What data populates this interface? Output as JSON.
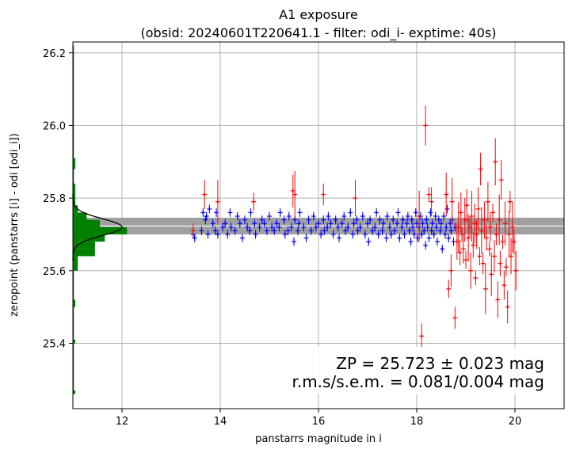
{
  "chart_data": {
    "type": "scatter",
    "title": "A1 exposure",
    "subtitle": "(obsid: 20240601T220641.1 - filter: odi_i- exptime: 40s)",
    "xlabel": "panstarrs magnitude in i",
    "ylabel": "zeropoint (panstarrs [i] - odi [odi_i])",
    "xlim": [
      11.0,
      21.0
    ],
    "ylim": [
      25.22,
      26.23
    ],
    "xticks": [
      12,
      14,
      16,
      18,
      20
    ],
    "yticks": [
      25.4,
      25.6,
      25.8,
      26.0,
      26.2
    ],
    "xtick_labels": [
      "12",
      "14",
      "16",
      "18",
      "20"
    ],
    "ytick_labels": [
      "25.4",
      "25.6",
      "25.8",
      "26.0",
      "26.2"
    ],
    "grid": true,
    "zeropoint_band": {
      "center": 25.723,
      "lower": 25.7,
      "upper": 25.746,
      "color": "#a0a0a0"
    },
    "zeropoint_line": {
      "y": 25.723,
      "color": "#ffffff"
    },
    "histogram": {
      "color": "#008000",
      "bins": [
        {
          "y0": 25.26,
          "y1": 25.27,
          "count": 0.05
        },
        {
          "y0": 25.4,
          "y1": 25.41,
          "count": 0.05
        },
        {
          "y0": 25.5,
          "y1": 25.52,
          "count": 0.05
        },
        {
          "y0": 25.6,
          "y1": 25.64,
          "count": 0.1
        },
        {
          "y0": 25.64,
          "y1": 25.66,
          "count": 0.45
        },
        {
          "y0": 25.66,
          "y1": 25.68,
          "count": 0.45
        },
        {
          "y0": 25.68,
          "y1": 25.7,
          "count": 0.65
        },
        {
          "y0": 25.7,
          "y1": 25.72,
          "count": 1.1
        },
        {
          "y0": 25.72,
          "y1": 25.74,
          "count": 0.55
        },
        {
          "y0": 25.74,
          "y1": 25.76,
          "count": 0.28
        },
        {
          "y0": 25.76,
          "y1": 25.78,
          "count": 0.1
        },
        {
          "y0": 25.78,
          "y1": 25.81,
          "count": 0.05
        },
        {
          "y0": 25.81,
          "y1": 25.84,
          "count": 0.05
        },
        {
          "y0": 25.88,
          "y1": 25.91,
          "count": 0.05
        }
      ]
    },
    "gaussian": {
      "color": "#000000",
      "mu": 25.72,
      "sigma": 0.023,
      "peak_x": 12.0
    },
    "series": [
      {
        "marker": "+",
        "color": "#0000ff",
        "points": [
          [
            13.45,
            25.7
          ],
          [
            13.48,
            25.69
          ],
          [
            13.62,
            25.71
          ],
          [
            13.65,
            25.76
          ],
          [
            13.7,
            25.74
          ],
          [
            13.72,
            25.75
          ],
          [
            13.75,
            25.7
          ],
          [
            13.78,
            25.77
          ],
          [
            13.85,
            25.73
          ],
          [
            13.9,
            25.71
          ],
          [
            13.92,
            25.76
          ],
          [
            13.95,
            25.7
          ],
          [
            14.05,
            25.72
          ],
          [
            14.1,
            25.73
          ],
          [
            14.15,
            25.7
          ],
          [
            14.2,
            25.76
          ],
          [
            14.22,
            25.72
          ],
          [
            14.3,
            25.71
          ],
          [
            14.35,
            25.75
          ],
          [
            14.4,
            25.73
          ],
          [
            14.45,
            25.69
          ],
          [
            14.5,
            25.74
          ],
          [
            14.55,
            25.72
          ],
          [
            14.6,
            25.71
          ],
          [
            14.62,
            25.76
          ],
          [
            14.7,
            25.73
          ],
          [
            14.72,
            25.7
          ],
          [
            14.8,
            25.72
          ],
          [
            14.85,
            25.74
          ],
          [
            14.9,
            25.73
          ],
          [
            14.95,
            25.71
          ],
          [
            15.0,
            25.75
          ],
          [
            15.05,
            25.72
          ],
          [
            15.1,
            25.71
          ],
          [
            15.15,
            25.73
          ],
          [
            15.2,
            25.72
          ],
          [
            15.22,
            25.76
          ],
          [
            15.3,
            25.74
          ],
          [
            15.32,
            25.7
          ],
          [
            15.38,
            25.71
          ],
          [
            15.4,
            25.75
          ],
          [
            15.45,
            25.72
          ],
          [
            15.5,
            25.68
          ],
          [
            15.52,
            25.74
          ],
          [
            15.58,
            25.71
          ],
          [
            15.6,
            25.73
          ],
          [
            15.62,
            25.76
          ],
          [
            15.7,
            25.72
          ],
          [
            15.75,
            25.69
          ],
          [
            15.8,
            25.74
          ],
          [
            15.85,
            25.71
          ],
          [
            15.9,
            25.75
          ],
          [
            15.95,
            25.72
          ],
          [
            16.0,
            25.73
          ],
          [
            16.05,
            25.7
          ],
          [
            16.1,
            25.74
          ],
          [
            16.12,
            25.71
          ],
          [
            16.18,
            25.72
          ],
          [
            16.2,
            25.75
          ],
          [
            16.25,
            25.73
          ],
          [
            16.3,
            25.7
          ],
          [
            16.35,
            25.74
          ],
          [
            16.4,
            25.72
          ],
          [
            16.42,
            25.69
          ],
          [
            16.48,
            25.73
          ],
          [
            16.52,
            25.75
          ],
          [
            16.55,
            25.71
          ],
          [
            16.6,
            25.72
          ],
          [
            16.65,
            25.76
          ],
          [
            16.7,
            25.7
          ],
          [
            16.72,
            25.73
          ],
          [
            16.78,
            25.74
          ],
          [
            16.8,
            25.71
          ],
          [
            16.85,
            25.72
          ],
          [
            16.9,
            25.75
          ],
          [
            16.95,
            25.7
          ],
          [
            17.0,
            25.73
          ],
          [
            17.02,
            25.68
          ],
          [
            17.05,
            25.74
          ],
          [
            17.1,
            25.71
          ],
          [
            17.15,
            25.72
          ],
          [
            17.18,
            25.76
          ],
          [
            17.22,
            25.7
          ],
          [
            17.25,
            25.74
          ],
          [
            17.3,
            25.71
          ],
          [
            17.32,
            25.73
          ],
          [
            17.38,
            25.69
          ],
          [
            17.4,
            25.75
          ],
          [
            17.45,
            25.72
          ],
          [
            17.48,
            25.7
          ],
          [
            17.52,
            25.74
          ],
          [
            17.55,
            25.71
          ],
          [
            17.6,
            25.73
          ],
          [
            17.62,
            25.76
          ],
          [
            17.65,
            25.69
          ],
          [
            17.7,
            25.72
          ],
          [
            17.72,
            25.74
          ],
          [
            17.75,
            25.7
          ],
          [
            17.8,
            25.73
          ],
          [
            17.82,
            25.75
          ],
          [
            17.85,
            25.71
          ],
          [
            17.88,
            25.68
          ],
          [
            17.9,
            25.74
          ],
          [
            17.92,
            25.72
          ],
          [
            17.95,
            25.7
          ],
          [
            17.98,
            25.76
          ],
          [
            18.0,
            25.73
          ],
          [
            18.02,
            25.69
          ],
          [
            18.05,
            25.72
          ],
          [
            18.08,
            25.75
          ],
          [
            18.1,
            25.7
          ],
          [
            18.12,
            25.73
          ],
          [
            18.15,
            25.71
          ],
          [
            18.18,
            25.67
          ],
          [
            18.2,
            25.74
          ],
          [
            18.22,
            25.72
          ],
          [
            18.25,
            25.69
          ],
          [
            18.28,
            25.76
          ],
          [
            18.3,
            25.71
          ],
          [
            18.32,
            25.73
          ],
          [
            18.35,
            25.7
          ],
          [
            18.38,
            25.75
          ],
          [
            18.4,
            25.72
          ],
          [
            18.42,
            25.68
          ],
          [
            18.45,
            25.74
          ],
          [
            18.48,
            25.71
          ],
          [
            18.5,
            25.73
          ],
          [
            18.52,
            25.66
          ],
          [
            18.55,
            25.75
          ],
          [
            18.58,
            25.7
          ],
          [
            18.6,
            25.72
          ],
          [
            18.62,
            25.77
          ],
          [
            18.65,
            25.69
          ],
          [
            18.68,
            25.73
          ],
          [
            18.7,
            25.71
          ],
          [
            18.72,
            25.74
          ],
          [
            18.75,
            25.68
          ],
          [
            18.78,
            25.72
          ]
        ]
      },
      {
        "marker": "+",
        "color": "#ff0000",
        "points": [
          [
            13.45,
            25.71
          ],
          [
            13.68,
            25.81
          ],
          [
            13.95,
            25.79
          ],
          [
            14.68,
            25.79
          ],
          [
            15.48,
            25.82
          ],
          [
            15.52,
            25.81
          ],
          [
            16.1,
            25.81
          ],
          [
            16.75,
            25.8
          ],
          [
            18.05,
            25.75
          ],
          [
            18.1,
            25.42
          ],
          [
            18.18,
            26.0
          ],
          [
            18.25,
            25.81
          ],
          [
            18.3,
            25.79
          ],
          [
            18.6,
            25.81
          ],
          [
            18.65,
            25.55
          ],
          [
            18.7,
            25.6
          ],
          [
            18.72,
            25.79
          ],
          [
            18.78,
            25.47
          ],
          [
            18.82,
            25.68
          ],
          [
            18.85,
            25.72
          ],
          [
            18.88,
            25.65
          ],
          [
            18.9,
            25.76
          ],
          [
            18.92,
            25.7
          ],
          [
            18.95,
            25.66
          ],
          [
            18.98,
            25.74
          ],
          [
            19.0,
            25.63
          ],
          [
            19.02,
            25.78
          ],
          [
            19.05,
            25.69
          ],
          [
            19.08,
            25.72
          ],
          [
            19.1,
            25.6
          ],
          [
            19.12,
            25.75
          ],
          [
            19.15,
            25.67
          ],
          [
            19.18,
            25.73
          ],
          [
            19.2,
            25.58
          ],
          [
            19.22,
            25.7
          ],
          [
            19.25,
            25.77
          ],
          [
            19.28,
            25.64
          ],
          [
            19.3,
            25.88
          ],
          [
            19.32,
            25.71
          ],
          [
            19.35,
            25.62
          ],
          [
            19.38,
            25.74
          ],
          [
            19.4,
            25.55
          ],
          [
            19.42,
            25.69
          ],
          [
            19.45,
            25.79
          ],
          [
            19.48,
            25.66
          ],
          [
            19.5,
            25.72
          ],
          [
            19.52,
            25.59
          ],
          [
            19.55,
            25.76
          ],
          [
            19.58,
            25.64
          ],
          [
            19.6,
            25.9
          ],
          [
            19.62,
            25.7
          ],
          [
            19.65,
            25.52
          ],
          [
            19.68,
            25.74
          ],
          [
            19.7,
            25.62
          ],
          [
            19.72,
            25.85
          ],
          [
            19.75,
            25.68
          ],
          [
            19.78,
            25.56
          ],
          [
            19.8,
            25.73
          ],
          [
            19.82,
            25.61
          ],
          [
            19.85,
            25.5
          ],
          [
            19.88,
            25.7
          ],
          [
            19.9,
            25.79
          ],
          [
            19.92,
            25.64
          ],
          [
            19.95,
            25.72
          ],
          [
            19.98,
            25.68
          ],
          [
            20.02,
            25.6
          ]
        ]
      }
    ],
    "annotations": [
      "ZP = 25.723 ± 0.023 mag",
      "r.m.s/s.e.m. = 0.081/0.004 mag"
    ]
  }
}
